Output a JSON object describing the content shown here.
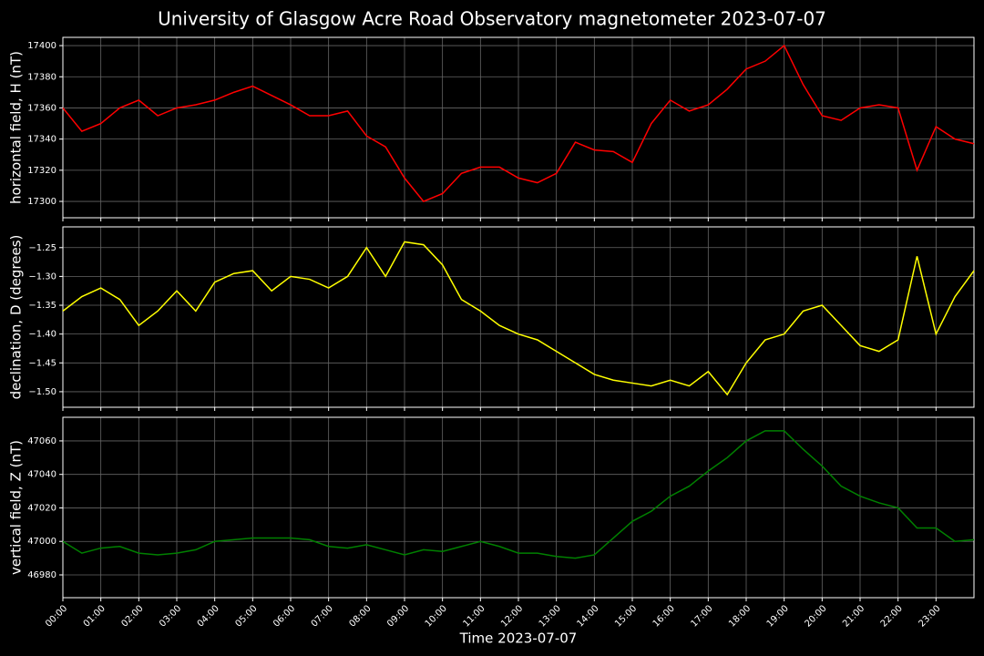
{
  "title": "University of Glasgow Acre Road Observatory magnetometer 2023-07-07",
  "chart_data": [
    {
      "type": "line",
      "ylabel": "horizontal field, H (nT)",
      "grid": true,
      "x": [
        0,
        0.5,
        1,
        1.5,
        2,
        2.5,
        3,
        3.5,
        4,
        4.5,
        5,
        5.5,
        6,
        6.5,
        7,
        7.5,
        8,
        8.5,
        9,
        9.5,
        10,
        10.5,
        11,
        11.5,
        12,
        12.5,
        13,
        13.5,
        14,
        14.5,
        15,
        15.5,
        16,
        16.5,
        17,
        17.5,
        18,
        18.5,
        19,
        19.5,
        20,
        20.5,
        21,
        21.5,
        22,
        22.5,
        23,
        23.5,
        24
      ],
      "xlim": [
        0,
        24
      ],
      "ylim": [
        17289.5,
        17405.3
      ],
      "yticks": [
        17300,
        17320,
        17340,
        17360,
        17380,
        17400
      ],
      "series": [
        {
          "name": "H",
          "color": "#ff0000",
          "values": [
            17360,
            17345,
            17350,
            17360,
            17365,
            17355,
            17360,
            17362,
            17365,
            17370,
            17374,
            17368,
            17362,
            17355,
            17355,
            17358,
            17342,
            17335,
            17315,
            17300,
            17305,
            17318,
            17322,
            17322,
            17315,
            17312,
            17318,
            17338,
            17333,
            17332,
            17325,
            17350,
            17365,
            17358,
            17362,
            17372,
            17385,
            17390,
            17400,
            17375,
            17355,
            17352,
            17360,
            17362,
            17360,
            17320,
            17348,
            17340,
            17337
          ]
        }
      ]
    },
    {
      "type": "line",
      "ylabel": "declination, D (degrees)",
      "grid": true,
      "x": [
        0,
        0.5,
        1,
        1.5,
        2,
        2.5,
        3,
        3.5,
        4,
        4.5,
        5,
        5.5,
        6,
        6.5,
        7,
        7.5,
        8,
        8.5,
        9,
        9.5,
        10,
        10.5,
        11,
        11.5,
        12,
        12.5,
        13,
        13.5,
        14,
        14.5,
        15,
        15.5,
        16,
        16.5,
        17,
        17.5,
        18,
        18.5,
        19,
        19.5,
        20,
        20.5,
        21,
        21.5,
        22,
        22.5,
        23,
        23.5,
        24
      ],
      "xlim": [
        0,
        24
      ],
      "ylim": [
        -1.527,
        -1.214
      ],
      "yticks": [
        {
          "value": -1.5,
          "label": "−1.50"
        },
        {
          "value": -1.45,
          "label": "−1.45"
        },
        {
          "value": -1.4,
          "label": "−1.40"
        },
        {
          "value": -1.35,
          "label": "−1.35"
        },
        {
          "value": -1.3,
          "label": "−1.30"
        },
        {
          "value": -1.25,
          "label": "−1.25"
        }
      ],
      "series": [
        {
          "name": "D",
          "color": "#ffff00",
          "values": [
            -1.36,
            -1.335,
            -1.32,
            -1.34,
            -1.385,
            -1.36,
            -1.325,
            -1.36,
            -1.31,
            -1.295,
            -1.29,
            -1.325,
            -1.3,
            -1.305,
            -1.32,
            -1.3,
            -1.25,
            -1.3,
            -1.24,
            -1.245,
            -1.28,
            -1.34,
            -1.36,
            -1.385,
            -1.4,
            -1.41,
            -1.43,
            -1.45,
            -1.47,
            -1.48,
            -1.485,
            -1.49,
            -1.48,
            -1.49,
            -1.465,
            -1.505,
            -1.45,
            -1.41,
            -1.4,
            -1.36,
            -1.35,
            -1.385,
            -1.42,
            -1.43,
            -1.41,
            -1.265,
            -1.4,
            -1.335,
            -1.29
          ]
        }
      ]
    },
    {
      "type": "line",
      "ylabel": "vertical field, Z (nT)",
      "xlabel": "Time 2023-07-07",
      "grid": true,
      "x": [
        0,
        0.5,
        1,
        1.5,
        2,
        2.5,
        3,
        3.5,
        4,
        4.5,
        5,
        5.5,
        6,
        6.5,
        7,
        7.5,
        8,
        8.5,
        9,
        9.5,
        10,
        10.5,
        11,
        11.5,
        12,
        12.5,
        13,
        13.5,
        14,
        14.5,
        15,
        15.5,
        16,
        16.5,
        17,
        17.5,
        18,
        18.5,
        19,
        19.5,
        20,
        20.5,
        21,
        21.5,
        22,
        22.5,
        23,
        23.5,
        24
      ],
      "xlim": [
        0,
        24
      ],
      "ylim": [
        46966.4,
        47074.1
      ],
      "yticks": [
        46980,
        47000,
        47020,
        47040,
        47060
      ],
      "xticks": [
        {
          "value": 0,
          "label": "00:00"
        },
        {
          "value": 1,
          "label": "01:00"
        },
        {
          "value": 2,
          "label": "02:00"
        },
        {
          "value": 3,
          "label": "03:00"
        },
        {
          "value": 4,
          "label": "04:00"
        },
        {
          "value": 5,
          "label": "05:00"
        },
        {
          "value": 6,
          "label": "06:00"
        },
        {
          "value": 7,
          "label": "07:00"
        },
        {
          "value": 8,
          "label": "08:00"
        },
        {
          "value": 9,
          "label": "09:00"
        },
        {
          "value": 10,
          "label": "10:00"
        },
        {
          "value": 11,
          "label": "11:00"
        },
        {
          "value": 12,
          "label": "12:00"
        },
        {
          "value": 13,
          "label": "13:00"
        },
        {
          "value": 14,
          "label": "14:00"
        },
        {
          "value": 15,
          "label": "15:00"
        },
        {
          "value": 16,
          "label": "16:00"
        },
        {
          "value": 17,
          "label": "17:00"
        },
        {
          "value": 18,
          "label": "18:00"
        },
        {
          "value": 19,
          "label": "19:00"
        },
        {
          "value": 20,
          "label": "20:00"
        },
        {
          "value": 21,
          "label": "21:00"
        },
        {
          "value": 22,
          "label": "22:00"
        },
        {
          "value": 23,
          "label": "23:00"
        }
      ],
      "series": [
        {
          "name": "Z",
          "color": "#008000",
          "values": [
            47000,
            46993,
            46996,
            46997,
            46993,
            46992,
            46993,
            46995,
            47000,
            47001,
            47002,
            47002,
            47002,
            47001,
            46997,
            46996,
            46998,
            46995,
            46992,
            46995,
            46994,
            46997,
            47000,
            46997,
            46993,
            46993,
            46991,
            46990,
            46992,
            47002,
            47012,
            47018,
            47027,
            47033,
            47042,
            47050,
            47060,
            47066,
            47066,
            47055,
            47045,
            47033,
            47027,
            47023,
            47020,
            47008,
            47008,
            47000,
            47001
          ]
        }
      ]
    }
  ]
}
